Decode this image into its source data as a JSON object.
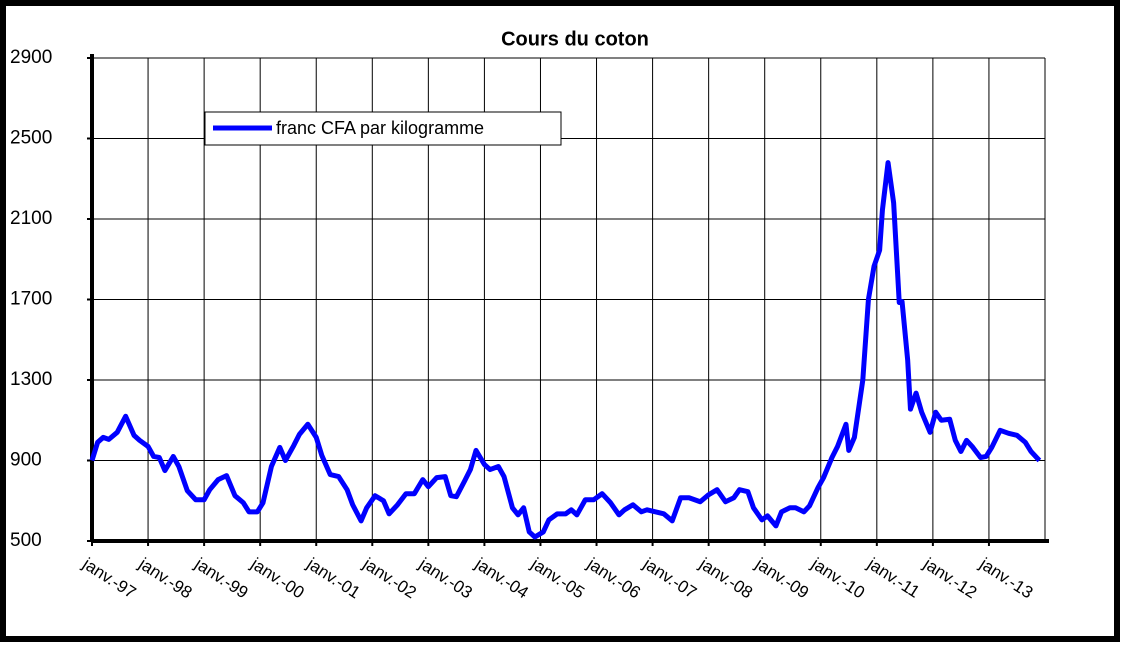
{
  "chart_data": {
    "type": "line",
    "title": "Cours du coton",
    "x": [
      1997.0,
      1997.1,
      1997.2,
      1997.3,
      1997.45,
      1997.6,
      1997.75,
      1997.85,
      1998.0,
      1998.1,
      1998.2,
      1998.3,
      1998.45,
      1998.55,
      1998.7,
      1998.85,
      1999.0,
      1999.1,
      1999.25,
      1999.4,
      1999.55,
      1999.7,
      1999.8,
      1999.95,
      2000.05,
      2000.2,
      2000.35,
      2000.45,
      2000.6,
      2000.7,
      2000.85,
      2001.0,
      2001.1,
      2001.25,
      2001.4,
      2001.55,
      2001.65,
      2001.8,
      2001.9,
      2002.05,
      2002.2,
      2002.3,
      2002.45,
      2002.6,
      2002.75,
      2002.9,
      2003.0,
      2003.15,
      2003.3,
      2003.4,
      2003.5,
      2003.65,
      2003.75,
      2003.85,
      2004.0,
      2004.1,
      2004.25,
      2004.35,
      2004.5,
      2004.6,
      2004.7,
      2004.8,
      2004.9,
      2005.05,
      2005.15,
      2005.3,
      2005.45,
      2005.55,
      2005.65,
      2005.8,
      2005.95,
      2006.1,
      2006.25,
      2006.4,
      2006.5,
      2006.65,
      2006.8,
      2006.9,
      2007.05,
      2007.2,
      2007.35,
      2007.5,
      2007.65,
      2007.85,
      2008.0,
      2008.15,
      2008.3,
      2008.45,
      2008.55,
      2008.7,
      2008.8,
      2008.95,
      2009.05,
      2009.2,
      2009.3,
      2009.45,
      2009.55,
      2009.7,
      2009.8,
      2009.95,
      2010.05,
      2010.2,
      2010.3,
      2010.45,
      2010.5,
      2010.6,
      2010.75,
      2010.85,
      2010.95,
      2011.05,
      2011.1,
      2011.2,
      2011.3,
      2011.4,
      2011.45,
      2011.55,
      2011.6,
      2011.7,
      2011.8,
      2011.95,
      2012.05,
      2012.15,
      2012.3,
      2012.4,
      2012.5,
      2012.6,
      2012.7,
      2012.85,
      2012.95,
      2013.05,
      2013.2,
      2013.35,
      2013.5,
      2013.65,
      2013.75,
      2013.9
    ],
    "series": [
      {
        "name": "franc CFA par kilogramme",
        "color": "#0000ff",
        "values": [
          900,
          990,
          1015,
          1005,
          1040,
          1120,
          1025,
          1000,
          970,
          920,
          915,
          850,
          920,
          870,
          750,
          705,
          705,
          755,
          805,
          825,
          725,
          690,
          645,
          645,
          690,
          870,
          965,
          900,
          975,
          1030,
          1080,
          1015,
          925,
          830,
          820,
          755,
          680,
          600,
          665,
          725,
          700,
          635,
          680,
          735,
          735,
          805,
          770,
          815,
          820,
          725,
          720,
          800,
          855,
          950,
          880,
          855,
          870,
          820,
          665,
          630,
          665,
          545,
          520,
          545,
          605,
          635,
          635,
          655,
          630,
          705,
          705,
          735,
          690,
          630,
          655,
          680,
          645,
          655,
          645,
          635,
          600,
          715,
          715,
          695,
          730,
          755,
          695,
          715,
          755,
          745,
          665,
          605,
          625,
          575,
          645,
          665,
          665,
          645,
          675,
          765,
          815,
          915,
          970,
          1080,
          950,
          1015,
          1300,
          1700,
          1865,
          1945,
          2145,
          2380,
          2180,
          1685,
          1690,
          1400,
          1155,
          1235,
          1140,
          1040,
          1140,
          1100,
          1105,
          1000,
          945,
          1000,
          970,
          915,
          920,
          965,
          1050,
          1035,
          1025,
          990,
          945,
          900
        ]
      }
    ],
    "xlim": [
      1997,
      2014
    ],
    "xticks": [
      {
        "value": 1997,
        "label": "janv.-97"
      },
      {
        "value": 1998,
        "label": "janv.-98"
      },
      {
        "value": 1999,
        "label": "janv.-99"
      },
      {
        "value": 2000,
        "label": "janv.-00"
      },
      {
        "value": 2001,
        "label": "janv.-01"
      },
      {
        "value": 2002,
        "label": "janv.-02"
      },
      {
        "value": 2003,
        "label": "janv.-03"
      },
      {
        "value": 2004,
        "label": "janv.-04"
      },
      {
        "value": 2005,
        "label": "janv.-05"
      },
      {
        "value": 2006,
        "label": "janv.-06"
      },
      {
        "value": 2007,
        "label": "janv.-07"
      },
      {
        "value": 2008,
        "label": "janv.-08"
      },
      {
        "value": 2009,
        "label": "janv.-09"
      },
      {
        "value": 2010,
        "label": "janv.-10"
      },
      {
        "value": 2011,
        "label": "janv.-11"
      },
      {
        "value": 2012,
        "label": "janv.-12"
      },
      {
        "value": 2013,
        "label": "janv.-13"
      }
    ],
    "ylim": [
      500,
      2900
    ],
    "yticks": [
      500,
      900,
      1300,
      1700,
      2100,
      2500,
      2900
    ],
    "grid": true
  }
}
